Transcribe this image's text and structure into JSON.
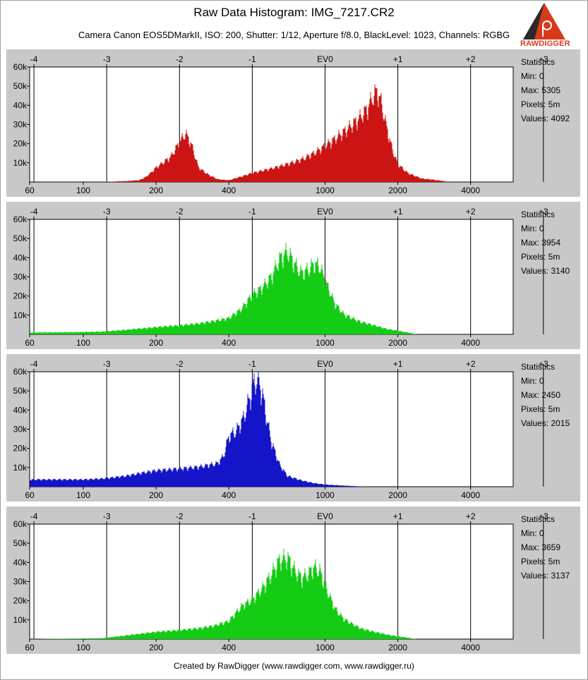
{
  "header": {
    "title": "Raw Data Histogram: IMG_7217.CR2",
    "subtitle": "Camera Canon EOS5DMarkII, ISO: 200, Shutter: 1/12, Aperture f/8.0, BlackLevel: 1023, Channels: RGBG",
    "logo_text": "RAWDIGGER"
  },
  "footer": "Created by RawDigger (www.rawdigger.com, www.rawdigger.ru)",
  "colors": {
    "red": "#cc1414",
    "green": "#14cc14",
    "blue": "#1414c8",
    "panel_bg": "#c8c8c8",
    "plot_bg": "#ffffff",
    "logo": "#d73a1b"
  },
  "stats_label": "Statistics",
  "panels": [
    {
      "channel": "R",
      "color": "#cc1414",
      "stats": {
        "min": "Min: 0",
        "max": "Max: 5305",
        "pixels": "Pixels: 5m",
        "values": "Values: 4092"
      }
    },
    {
      "channel": "G",
      "color": "#14cc14",
      "stats": {
        "min": "Min: 0",
        "max": "Max: 3954",
        "pixels": "Pixels: 5m",
        "values": "Values: 3140"
      }
    },
    {
      "channel": "B",
      "color": "#1414c8",
      "stats": {
        "min": "Min: 0",
        "max": "Max: 2450",
        "pixels": "Pixels: 5m",
        "values": "Values: 2015"
      }
    },
    {
      "channel": "G2",
      "color": "#14cc14",
      "stats": {
        "min": "Min: 0",
        "max": "Max: 3659",
        "pixels": "Pixels: 5m",
        "values": "Values: 3137"
      }
    }
  ],
  "chart_data": [
    {
      "type": "area",
      "series": [
        {
          "name": "R",
          "color": "#cc1414"
        }
      ],
      "x_scale": "log",
      "xlim": [
        60,
        6000
      ],
      "ylim": [
        0,
        60000
      ],
      "x_ticks": [
        60,
        100,
        200,
        400,
        1000,
        2000,
        4000
      ],
      "x_tick_labels": [
        "60",
        "100",
        "200",
        "400",
        "1000",
        "2000",
        "4000"
      ],
      "top_ticks": [
        -4,
        -3,
        -2,
        -1,
        0,
        1,
        2,
        3
      ],
      "top_tick_labels": [
        "-4",
        "-3",
        "-2",
        "-1",
        "EV0",
        "+1",
        "+2",
        "+3"
      ],
      "y_ticks": [
        10000,
        20000,
        30000,
        40000,
        50000,
        60000
      ],
      "y_tick_labels": [
        "10k",
        "20k",
        "30k",
        "40k",
        "50k",
        "60k"
      ],
      "x": [
        120,
        150,
        170,
        180,
        190,
        200,
        215,
        230,
        250,
        265,
        280,
        300,
        330,
        360,
        400,
        450,
        500,
        600,
        700,
        800,
        900,
        1000,
        1100,
        1200,
        1300,
        1400,
        1500,
        1550,
        1600,
        1650,
        1700,
        1750,
        1800,
        1900,
        2000,
        2200,
        2500,
        3000,
        3200,
        3300
      ],
      "values": [
        0,
        500,
        1000,
        2500,
        5000,
        8000,
        11000,
        14000,
        22000,
        27000,
        21000,
        8000,
        4000,
        1500,
        1000,
        3000,
        5000,
        7500,
        10000,
        12500,
        16000,
        20000,
        24000,
        28000,
        32000,
        36000,
        41000,
        45000,
        49000,
        50000,
        45000,
        38000,
        30000,
        18000,
        10000,
        5000,
        2000,
        800,
        200,
        0
      ]
    },
    {
      "type": "area",
      "series": [
        {
          "name": "G",
          "color": "#14cc14"
        }
      ],
      "x_scale": "log",
      "xlim": [
        60,
        6000
      ],
      "ylim": [
        0,
        60000
      ],
      "x_ticks": [
        60,
        100,
        200,
        400,
        1000,
        2000,
        4000
      ],
      "x_tick_labels": [
        "60",
        "100",
        "200",
        "400",
        "1000",
        "2000",
        "4000"
      ],
      "top_ticks": [
        -4,
        -3,
        -2,
        -1,
        0,
        1,
        2,
        3
      ],
      "top_tick_labels": [
        "-4",
        "-3",
        "-2",
        "-1",
        "EV0",
        "+1",
        "+2",
        "+3"
      ],
      "y_ticks": [
        10000,
        20000,
        30000,
        40000,
        50000,
        60000
      ],
      "y_tick_labels": [
        "10k",
        "20k",
        "30k",
        "40k",
        "50k",
        "60k"
      ],
      "x": [
        60,
        90,
        120,
        150,
        200,
        250,
        300,
        350,
        400,
        450,
        500,
        550,
        600,
        650,
        700,
        750,
        800,
        850,
        900,
        950,
        1000,
        1100,
        1200,
        1400,
        1600,
        1800,
        2000,
        2200,
        2300,
        2400
      ],
      "values": [
        1000,
        1200,
        1500,
        2500,
        4000,
        5000,
        6000,
        7500,
        9000,
        14000,
        22000,
        26000,
        32000,
        42000,
        46000,
        39000,
        34000,
        36000,
        39000,
        38000,
        30000,
        17000,
        11000,
        7000,
        5000,
        3000,
        2000,
        1000,
        500,
        0
      ]
    },
    {
      "type": "area",
      "series": [
        {
          "name": "B",
          "color": "#1414c8"
        }
      ],
      "x_scale": "log",
      "xlim": [
        60,
        6000
      ],
      "ylim": [
        0,
        60000
      ],
      "x_ticks": [
        60,
        100,
        200,
        400,
        1000,
        2000,
        4000
      ],
      "x_tick_labels": [
        "60",
        "100",
        "200",
        "400",
        "1000",
        "2000",
        "4000"
      ],
      "top_ticks": [
        -4,
        -3,
        -2,
        -1,
        0,
        1,
        2,
        3
      ],
      "top_tick_labels": [
        "-4",
        "-3",
        "-2",
        "-1",
        "EV0",
        "+1",
        "+2",
        "+3"
      ],
      "y_ticks": [
        10000,
        20000,
        30000,
        40000,
        50000,
        60000
      ],
      "y_tick_labels": [
        "10k",
        "20k",
        "30k",
        "40k",
        "50k",
        "60k"
      ],
      "x": [
        60,
        100,
        120,
        150,
        180,
        200,
        250,
        300,
        330,
        360,
        380,
        400,
        430,
        460,
        490,
        510,
        530,
        550,
        570,
        600,
        650,
        700,
        800,
        900,
        1000,
        1200,
        1400,
        1500
      ],
      "values": [
        4000,
        4000,
        4500,
        6000,
        8000,
        9000,
        10000,
        11000,
        12000,
        13000,
        17000,
        28000,
        31000,
        38000,
        50000,
        58000,
        59000,
        52000,
        40000,
        25000,
        12000,
        6000,
        3500,
        2000,
        1200,
        600,
        200,
        0
      ]
    },
    {
      "type": "area",
      "series": [
        {
          "name": "G2",
          "color": "#14cc14"
        }
      ],
      "x_scale": "log",
      "xlim": [
        60,
        6000
      ],
      "ylim": [
        0,
        60000
      ],
      "x_ticks": [
        60,
        100,
        200,
        400,
        1000,
        2000,
        4000
      ],
      "x_tick_labels": [
        "60",
        "100",
        "200",
        "400",
        "1000",
        "2000",
        "4000"
      ],
      "top_ticks": [
        -4,
        -3,
        -2,
        -1,
        0,
        1,
        2,
        3
      ],
      "top_tick_labels": [
        "-4",
        "-3",
        "-2",
        "-1",
        "EV0",
        "+1",
        "+2",
        "+3"
      ],
      "y_ticks": [
        10000,
        20000,
        30000,
        40000,
        50000,
        60000
      ],
      "y_tick_labels": [
        "10k",
        "20k",
        "30k",
        "40k",
        "50k",
        "60k"
      ],
      "x": [
        60,
        120,
        150,
        200,
        250,
        300,
        350,
        400,
        450,
        500,
        550,
        600,
        650,
        700,
        750,
        800,
        850,
        900,
        950,
        1000,
        1100,
        1200,
        1400,
        1600,
        1800,
        2000,
        2200,
        2300,
        2400
      ],
      "values": [
        0,
        500,
        2000,
        4000,
        5000,
        6000,
        7500,
        10000,
        18000,
        22000,
        28000,
        36000,
        44000,
        45000,
        38000,
        34000,
        36000,
        40000,
        38000,
        30000,
        17000,
        11000,
        6000,
        4000,
        2500,
        1500,
        800,
        300,
        0
      ]
    }
  ]
}
